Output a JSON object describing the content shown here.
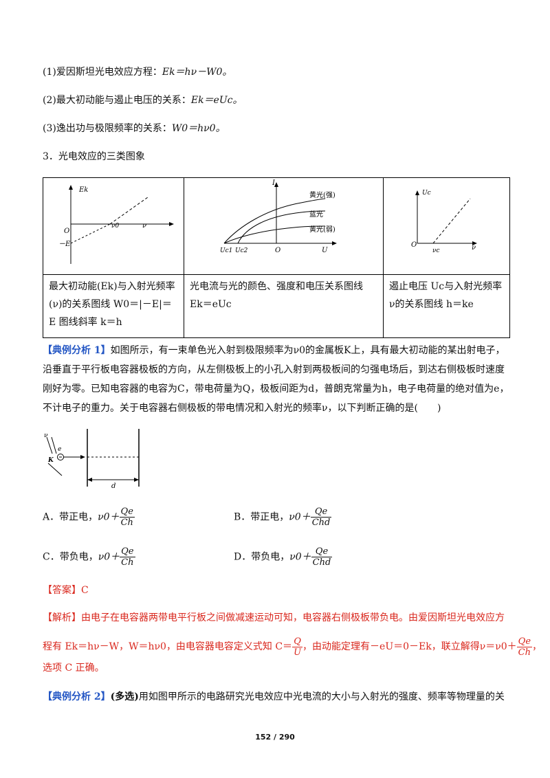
{
  "formulas": {
    "f1_prefix": "(1)爱因斯坦光电效应方程：",
    "f1_eq": "Ek＝hν－W0。",
    "f2_prefix": "(2)最大初动能与遏止电压的关系：",
    "f2_eq": "Ek＝eUc。",
    "f3_prefix": "(3)逸出功与极限频率的关系：",
    "f3_eq": "W0＝hν0。"
  },
  "section_title": "3．光电效应的三类图象",
  "graphs": {
    "g1": {
      "ylabel": "Ek",
      "origin": "O",
      "x_marker": "ν0",
      "xlabel": "ν",
      "neg_label": "－E"
    },
    "g2": {
      "ylabel": "I",
      "curve1": "黄光(强)",
      "curve2": "蓝光",
      "curve3": "黄光(弱)",
      "uc1": "Uc1",
      "uc2": "Uc2",
      "origin": "O",
      "xlabel": "U"
    },
    "g3": {
      "ylabel": "Uc",
      "origin": "O",
      "x_marker": "νc",
      "xlabel": "ν"
    }
  },
  "captions": {
    "c1": "最大初动能(Ek)与入射光频率(ν)的关系图线 W0＝|－E|＝E 图线斜率 k＝h",
    "c2": "光电流与光的颜色、强度和电压关系图线 Ek＝eUc",
    "c3": "遏止电压 Uc与入射光频率ν的关系图线 h＝ke"
  },
  "example1": {
    "tag": "【典例分析 1】",
    "text": "如图所示，有一束单色光入射到极限频率为ν0的金属板K上，具有最大初动能的某出射电子，沿垂直于平行板电容器极板的方向，从左侧极板上的小孔入射到两极板间的匀强电场后，到达右侧极板时速度刚好为零。已知电容器的电容为C，带电荷量为Q，极板间距为d，普朗克常量为h，电子电荷量的绝对值为e，不计电子的重力。关于电容器右侧极板的带电情况和入射光的频率ν，以下判断正确的是(　　)",
    "figure": {
      "nu": "ν",
      "e": "e",
      "k": "K",
      "d": "d"
    },
    "options": [
      {
        "label": "A．带正电，",
        "base": "ν0＋",
        "num": "Qe",
        "den": "Ch"
      },
      {
        "label": "B．带正电，",
        "base": "ν0＋",
        "num": "Qe",
        "den": "Chd"
      },
      {
        "label": "C．带负电，",
        "base": "ν0＋",
        "num": "Qe",
        "den": "Ch"
      },
      {
        "label": "D．带负电，",
        "base": "ν0＋",
        "num": "Qe",
        "den": "Chd"
      }
    ],
    "answer": "【答案】C",
    "analysis_line1": "【解析】由电子在电容器两带电平行板之间做减速运动可知，电容器右侧极板带负电。由爱因斯坦光电效应方",
    "analysis_line2a": "程有 Ek＝hν－W，W＝hν0，由电容器电容定义式知 C＝",
    "analysis_frac1_num": "Q",
    "analysis_frac1_den": "U",
    "analysis_line2b": "，由动能定理有－eU＝0－Ek，联立解得ν＝ν0＋",
    "analysis_frac2_num": "Qe",
    "analysis_frac2_den": "Ch",
    "analysis_line2c": "，",
    "analysis_line3": "选项 C 正确。"
  },
  "example2": {
    "tag": "【典例分析 2】",
    "multi": "(多选)",
    "text": "用如图甲所示的电路研究光电效应中光电流的大小与入射光的强度、频率等物理量的关"
  },
  "footer": "152 / 290"
}
